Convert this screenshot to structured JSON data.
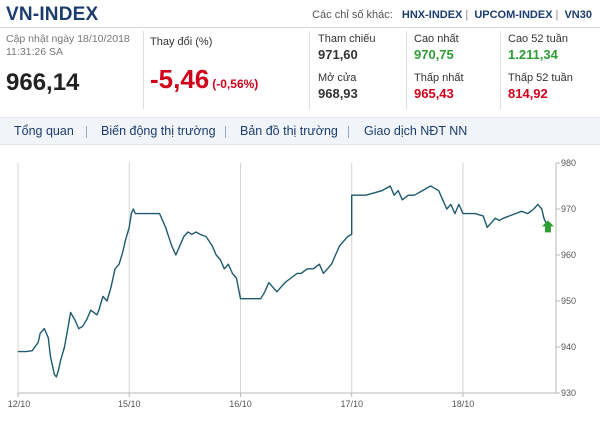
{
  "header": {
    "title": "VN-INDEX",
    "other_label": "Các chỉ số khác:",
    "other_indices": [
      "HNX-INDEX",
      "UPCOM-INDEX",
      "VN30"
    ]
  },
  "summary": {
    "updated_line1": "Cập nhật ngày 18/10/2018",
    "updated_line2": "11:31:26 SA",
    "price": "966,14",
    "change_label": "Thay đổi (%)",
    "change_abs": "-5,46",
    "change_pct": "(-0,56%)"
  },
  "stats": {
    "ref_label": "Tham chiếu",
    "ref_value": "971,60",
    "open_label": "Mở cửa",
    "open_value": "968,93",
    "high_label": "Cao nhất",
    "high_value": "970,75",
    "low_label": "Thấp nhất",
    "low_value": "965,43",
    "high52_label": "Cao 52 tuần",
    "high52_value": "1.211,34",
    "low52_label": "Thấp 52 tuần",
    "low52_value": "814,92"
  },
  "colors": {
    "line": "#1d5a6e",
    "up": "#2e9d33",
    "down": "#d0021b",
    "brand": "#1b3d6e"
  },
  "nav": {
    "items": [
      "Tổng quan",
      "Biến động thị trường",
      "Bản đồ thị trường",
      "Giao dịch NĐT NN"
    ]
  },
  "chart_data": {
    "type": "line",
    "x_ticks": [
      "12/10",
      "15/10",
      "16/10",
      "17/10",
      "18/10"
    ],
    "y_ticks": [
      930,
      940,
      950,
      960,
      970,
      980
    ],
    "ylim": [
      930,
      980
    ],
    "legend": "none",
    "grid": "vertical lines at day boundaries",
    "marker_icon": "up-arrow-icon",
    "series": [
      {
        "values": [
          [
            0.0,
            939
          ],
          [
            0.4,
            939
          ],
          [
            0.7,
            939.2
          ],
          [
            1.0,
            941
          ],
          [
            1.1,
            943
          ],
          [
            1.3,
            944
          ],
          [
            1.5,
            942
          ],
          [
            1.6,
            938
          ],
          [
            1.8,
            934
          ],
          [
            1.9,
            933.5
          ],
          [
            2.0,
            935
          ],
          [
            2.1,
            937
          ],
          [
            2.3,
            940
          ],
          [
            2.5,
            945
          ],
          [
            2.6,
            947.5
          ],
          [
            2.8,
            946
          ],
          [
            3.0,
            944
          ],
          [
            3.2,
            944.5
          ],
          [
            3.4,
            946
          ],
          [
            3.6,
            948
          ],
          [
            3.9,
            947
          ],
          [
            4.0,
            948
          ],
          [
            4.2,
            951
          ],
          [
            4.4,
            950
          ],
          [
            4.6,
            953
          ],
          [
            4.8,
            957
          ],
          [
            5.0,
            958
          ],
          [
            5.2,
            961
          ],
          [
            5.3,
            963
          ],
          [
            5.5,
            966
          ],
          [
            5.6,
            969
          ],
          [
            5.7,
            970
          ],
          [
            5.8,
            969
          ],
          [
            6.0,
            969
          ],
          [
            6.6,
            969
          ],
          [
            7.0,
            969
          ],
          [
            7.3,
            966
          ],
          [
            7.6,
            962
          ],
          [
            7.8,
            960
          ],
          [
            8.0,
            962
          ],
          [
            8.2,
            964
          ],
          [
            8.4,
            965
          ],
          [
            8.6,
            964.5
          ],
          [
            8.8,
            965
          ],
          [
            9.0,
            964.5
          ],
          [
            9.3,
            964
          ],
          [
            9.6,
            962
          ],
          [
            9.8,
            960
          ],
          [
            10.0,
            959
          ],
          [
            10.2,
            957
          ],
          [
            10.4,
            958
          ],
          [
            10.6,
            956
          ],
          [
            10.8,
            955
          ],
          [
            11.0,
            950.5
          ],
          [
            11.0,
            950.5
          ],
          [
            12.0,
            950.5
          ],
          [
            12.2,
            952
          ],
          [
            12.4,
            954
          ],
          [
            12.6,
            953
          ],
          [
            12.8,
            952
          ],
          [
            13.0,
            953
          ],
          [
            13.2,
            954
          ],
          [
            13.5,
            955
          ],
          [
            13.8,
            956
          ],
          [
            14.0,
            956
          ],
          [
            14.3,
            957
          ],
          [
            14.6,
            957
          ],
          [
            14.9,
            958
          ],
          [
            15.1,
            956
          ],
          [
            15.3,
            957
          ],
          [
            15.5,
            958
          ],
          [
            15.7,
            960
          ],
          [
            15.9,
            962
          ],
          [
            16.1,
            963
          ],
          [
            16.3,
            964
          ],
          [
            16.5,
            964.5
          ],
          [
            16.5,
            973
          ],
          [
            17.2,
            973
          ],
          [
            17.6,
            973.5
          ],
          [
            18.0,
            974
          ],
          [
            18.4,
            975
          ],
          [
            18.6,
            973
          ],
          [
            18.8,
            974
          ],
          [
            19.0,
            972
          ],
          [
            19.3,
            973
          ],
          [
            19.6,
            973
          ],
          [
            20.0,
            974
          ],
          [
            20.4,
            975
          ],
          [
            20.6,
            974.5
          ],
          [
            20.8,
            974
          ],
          [
            21.0,
            972
          ],
          [
            21.2,
            970
          ],
          [
            21.4,
            971
          ],
          [
            21.6,
            969
          ],
          [
            21.8,
            971
          ],
          [
            22.0,
            969
          ],
          [
            22.0,
            969
          ],
          [
            22.6,
            969
          ],
          [
            23.0,
            968.5
          ],
          [
            23.2,
            966
          ],
          [
            23.4,
            967
          ],
          [
            23.6,
            968
          ],
          [
            23.8,
            967.5
          ],
          [
            24.0,
            968
          ],
          [
            24.3,
            968.5
          ],
          [
            24.6,
            969
          ],
          [
            24.9,
            969.5
          ],
          [
            25.2,
            969
          ],
          [
            25.5,
            970
          ],
          [
            25.7,
            971
          ],
          [
            25.9,
            970
          ],
          [
            26.0,
            968
          ],
          [
            26.2,
            966
          ]
        ]
      }
    ]
  }
}
